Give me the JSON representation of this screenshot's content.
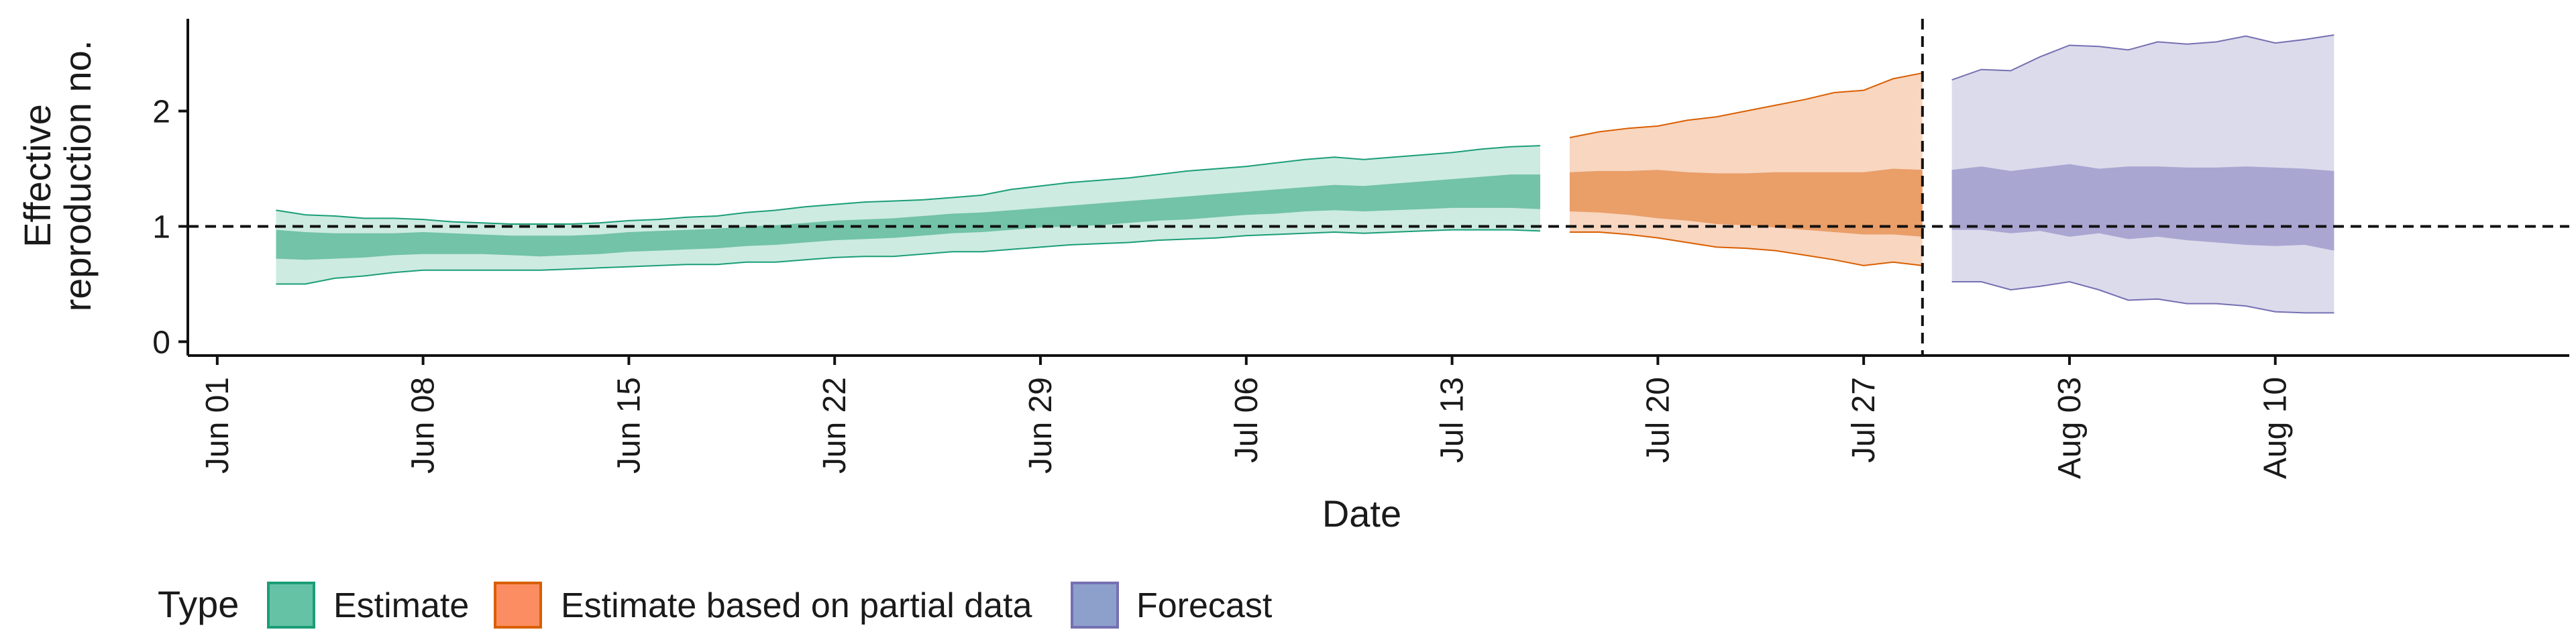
{
  "chart_data": {
    "type": "area",
    "xlabel": "Date",
    "ylabel_lines": [
      "Effective",
      "reproduction no."
    ],
    "x_ticks": [
      "Jun 01",
      "Jun 08",
      "Jun 15",
      "Jun 22",
      "Jun 29",
      "Jul 06",
      "Jul 13",
      "Jul 20",
      "Jul 27",
      "Aug 03",
      "Aug 10"
    ],
    "y_ticks": [
      "0",
      "1",
      "2"
    ],
    "xlim": [
      "2020-05-31",
      "2020-08-20"
    ],
    "ylim": [
      -0.12,
      2.8
    ],
    "reference_line_y": 1,
    "forecast_date": "2020-07-29",
    "legend": {
      "title": "Type",
      "position": "bottom-left",
      "items": [
        {
          "label": "Estimate",
          "color": "#66c2a5",
          "border": "#1b9e77"
        },
        {
          "label": "Estimate based on partial data",
          "color": "#fc8d62",
          "border": "#d95f02"
        },
        {
          "label": "Forecast",
          "color": "#8da0cb",
          "border": "#7570b3"
        }
      ]
    },
    "series": [
      {
        "name": "Estimate",
        "fill_outer": "#cdebe1",
        "fill_inner": "#72c3a7",
        "stroke": "#1b9e77",
        "x": [
          "2020-06-03",
          "2020-06-04",
          "2020-06-05",
          "2020-06-06",
          "2020-06-07",
          "2020-06-08",
          "2020-06-09",
          "2020-06-10",
          "2020-06-11",
          "2020-06-12",
          "2020-06-13",
          "2020-06-14",
          "2020-06-15",
          "2020-06-16",
          "2020-06-17",
          "2020-06-18",
          "2020-06-19",
          "2020-06-20",
          "2020-06-21",
          "2020-06-22",
          "2020-06-23",
          "2020-06-24",
          "2020-06-25",
          "2020-06-26",
          "2020-06-27",
          "2020-06-28",
          "2020-06-29",
          "2020-06-30",
          "2020-07-01",
          "2020-07-02",
          "2020-07-03",
          "2020-07-04",
          "2020-07-05",
          "2020-07-06",
          "2020-07-07",
          "2020-07-08",
          "2020-07-09",
          "2020-07-10",
          "2020-07-11",
          "2020-07-12",
          "2020-07-13",
          "2020-07-14",
          "2020-07-15",
          "2020-07-16"
        ],
        "lower_90": [
          0.5,
          0.5,
          0.55,
          0.57,
          0.6,
          0.62,
          0.62,
          0.62,
          0.62,
          0.62,
          0.63,
          0.64,
          0.65,
          0.66,
          0.67,
          0.67,
          0.69,
          0.69,
          0.71,
          0.73,
          0.74,
          0.74,
          0.76,
          0.78,
          0.78,
          0.8,
          0.82,
          0.84,
          0.85,
          0.86,
          0.88,
          0.89,
          0.9,
          0.92,
          0.93,
          0.94,
          0.95,
          0.94,
          0.95,
          0.96,
          0.97,
          0.97,
          0.97,
          0.96
        ],
        "upper_90": [
          1.14,
          1.1,
          1.09,
          1.07,
          1.07,
          1.06,
          1.04,
          1.03,
          1.02,
          1.02,
          1.02,
          1.03,
          1.05,
          1.06,
          1.08,
          1.09,
          1.12,
          1.14,
          1.17,
          1.19,
          1.21,
          1.22,
          1.23,
          1.25,
          1.27,
          1.32,
          1.35,
          1.38,
          1.4,
          1.42,
          1.45,
          1.48,
          1.5,
          1.52,
          1.55,
          1.58,
          1.6,
          1.58,
          1.6,
          1.62,
          1.64,
          1.67,
          1.69,
          1.7
        ],
        "lower_50": [
          0.72,
          0.71,
          0.72,
          0.73,
          0.75,
          0.76,
          0.76,
          0.76,
          0.75,
          0.74,
          0.75,
          0.76,
          0.78,
          0.79,
          0.8,
          0.81,
          0.83,
          0.84,
          0.86,
          0.88,
          0.89,
          0.9,
          0.92,
          0.94,
          0.95,
          0.97,
          0.99,
          1.0,
          1.01,
          1.03,
          1.05,
          1.06,
          1.08,
          1.1,
          1.11,
          1.13,
          1.14,
          1.13,
          1.14,
          1.15,
          1.16,
          1.16,
          1.16,
          1.15
        ],
        "upper_50": [
          0.97,
          0.95,
          0.94,
          0.94,
          0.94,
          0.95,
          0.94,
          0.93,
          0.92,
          0.92,
          0.92,
          0.93,
          0.95,
          0.96,
          0.97,
          0.98,
          1.0,
          1.01,
          1.03,
          1.05,
          1.06,
          1.07,
          1.09,
          1.11,
          1.12,
          1.14,
          1.16,
          1.18,
          1.2,
          1.22,
          1.24,
          1.26,
          1.28,
          1.3,
          1.32,
          1.34,
          1.36,
          1.35,
          1.37,
          1.39,
          1.41,
          1.43,
          1.45,
          1.45
        ]
      },
      {
        "name": "Estimate based on partial data",
        "fill_outer": "#f8d6c0",
        "fill_inner": "#ea9e68",
        "stroke": "#d95f02",
        "x": [
          "2020-07-17",
          "2020-07-18",
          "2020-07-19",
          "2020-07-20",
          "2020-07-21",
          "2020-07-22",
          "2020-07-23",
          "2020-07-24",
          "2020-07-25",
          "2020-07-26",
          "2020-07-27",
          "2020-07-28",
          "2020-07-29"
        ],
        "lower_90": [
          0.95,
          0.95,
          0.93,
          0.9,
          0.86,
          0.82,
          0.81,
          0.79,
          0.75,
          0.71,
          0.66,
          0.69,
          0.66
        ],
        "upper_90": [
          1.77,
          1.82,
          1.85,
          1.87,
          1.92,
          1.95,
          2.0,
          2.05,
          2.1,
          2.16,
          2.18,
          2.28,
          2.33
        ],
        "lower_50": [
          1.13,
          1.12,
          1.1,
          1.07,
          1.05,
          1.02,
          1.01,
          0.99,
          0.97,
          0.95,
          0.93,
          0.93,
          0.91
        ],
        "upper_50": [
          1.47,
          1.48,
          1.48,
          1.49,
          1.47,
          1.46,
          1.46,
          1.47,
          1.47,
          1.47,
          1.47,
          1.5,
          1.49
        ]
      },
      {
        "name": "Forecast",
        "fill_outer": "#dcdbeb",
        "fill_inner": "#a9a6d2",
        "stroke": "#7570b3",
        "x": [
          "2020-07-30",
          "2020-07-31",
          "2020-08-01",
          "2020-08-02",
          "2020-08-03",
          "2020-08-04",
          "2020-08-05",
          "2020-08-06",
          "2020-08-07",
          "2020-08-08",
          "2020-08-09",
          "2020-08-10",
          "2020-08-11",
          "2020-08-12"
        ],
        "lower_90": [
          0.52,
          0.52,
          0.45,
          0.48,
          0.52,
          0.45,
          0.36,
          0.37,
          0.33,
          0.33,
          0.31,
          0.26,
          0.25,
          0.25
        ],
        "upper_90": [
          2.27,
          2.36,
          2.35,
          2.47,
          2.57,
          2.56,
          2.53,
          2.6,
          2.58,
          2.6,
          2.65,
          2.59,
          2.62,
          2.66
        ],
        "lower_50": [
          0.97,
          0.97,
          0.94,
          0.96,
          0.91,
          0.94,
          0.89,
          0.91,
          0.88,
          0.86,
          0.84,
          0.83,
          0.84,
          0.79
        ],
        "upper_50": [
          1.49,
          1.52,
          1.48,
          1.51,
          1.54,
          1.5,
          1.52,
          1.52,
          1.51,
          1.51,
          1.52,
          1.51,
          1.5,
          1.48
        ]
      }
    ]
  }
}
